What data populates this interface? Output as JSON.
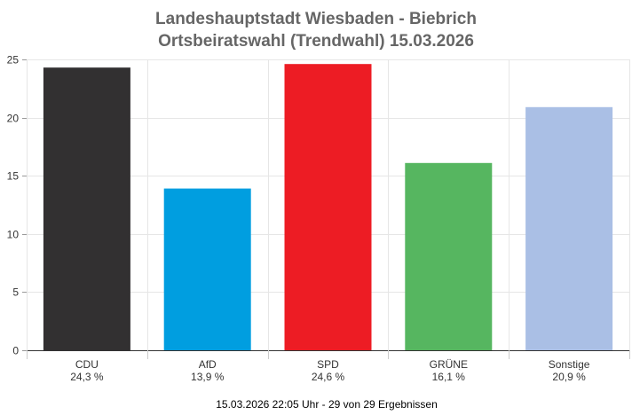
{
  "chart_data": {
    "type": "bar",
    "title": "Landeshauptstadt Wiesbaden - Biebrich",
    "subtitle": "Ortsbeiratswahl (Trendwahl) 15.03.2026",
    "categories": [
      "CDU",
      "AfD",
      "SPD",
      "GRÜNE",
      "Sonstige"
    ],
    "value_labels": [
      "24,3 %",
      "13,9 %",
      "24,6 %",
      "16,1 %",
      "20,9 %"
    ],
    "values": [
      24.3,
      13.9,
      24.6,
      16.1,
      20.9
    ],
    "colors": [
      "#323031",
      "#009ee0",
      "#ed1c24",
      "#56b660",
      "#aabfe5"
    ],
    "ylim": [
      0,
      25
    ],
    "yticks": [
      "0",
      "5",
      "10",
      "15",
      "20",
      "25"
    ],
    "grid": true,
    "xlabel": "",
    "ylabel": ""
  },
  "footer": "15.03.2026 22:05 Uhr - 29 von 29 Ergebnissen"
}
